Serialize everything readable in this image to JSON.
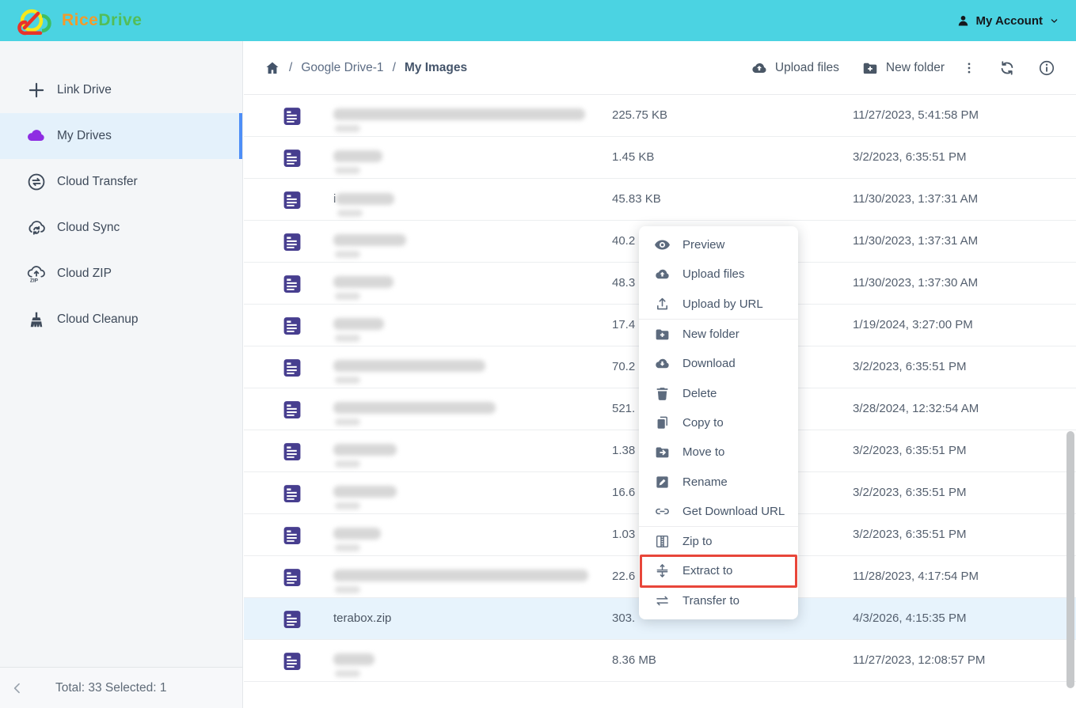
{
  "topbar": {
    "brand_primary": "Rice",
    "brand_secondary": "Drive",
    "account_label": "My Account"
  },
  "sidebar": {
    "items": [
      {
        "label": "Link Drive",
        "icon": "plus-icon",
        "active": false
      },
      {
        "label": "My Drives",
        "icon": "cloud-icon",
        "active": true
      },
      {
        "label": "Cloud Transfer",
        "icon": "transfer-circle-icon",
        "active": false
      },
      {
        "label": "Cloud Sync",
        "icon": "cloud-sync-icon",
        "active": false
      },
      {
        "label": "Cloud ZIP",
        "icon": "cloud-zip-icon",
        "active": false
      },
      {
        "label": "Cloud Cleanup",
        "icon": "broom-icon",
        "active": false
      }
    ],
    "footer_total": "Total: 33 Selected: 1"
  },
  "header": {
    "breadcrumb": {
      "items": [
        "Google Drive-1",
        "My Images"
      ],
      "separator": "/"
    },
    "upload_label": "Upload files",
    "new_folder_label": "New folder"
  },
  "file_list": {
    "rows": [
      {
        "name": "",
        "redacted": true,
        "blur_width": 318,
        "size": "225.75 KB",
        "modified": "11/27/2023, 5:41:58 PM",
        "selected": false
      },
      {
        "name": "",
        "redacted": true,
        "blur_width": 62,
        "size": "1.45 KB",
        "modified": "3/2/2023, 6:35:51 PM",
        "selected": false
      },
      {
        "name": "",
        "redacted": true,
        "blur_width": 74,
        "visible_prefix": "i",
        "size": "45.83 KB",
        "modified": "11/30/2023, 1:37:31 AM",
        "selected": false
      },
      {
        "name": "",
        "redacted": true,
        "blur_width": 92,
        "size": "40.2",
        "modified": "11/30/2023, 1:37:31 AM",
        "selected": false
      },
      {
        "name": "",
        "redacted": true,
        "blur_width": 76,
        "size": "48.3",
        "modified": "11/30/2023, 1:37:30 AM",
        "selected": false
      },
      {
        "name": "",
        "redacted": true,
        "blur_width": 64,
        "size": "17.4",
        "modified": "1/19/2024, 3:27:00 PM",
        "selected": false
      },
      {
        "name": "",
        "redacted": true,
        "blur_width": 192,
        "size": "70.2",
        "modified": "3/2/2023, 6:35:51 PM",
        "selected": false
      },
      {
        "name": "",
        "redacted": true,
        "blur_width": 205,
        "size": "521.",
        "modified": "3/28/2024, 12:32:54 AM",
        "selected": false
      },
      {
        "name": "",
        "redacted": true,
        "blur_width": 80,
        "size": "1.38",
        "modified": "3/2/2023, 6:35:51 PM",
        "selected": false
      },
      {
        "name": "",
        "redacted": true,
        "blur_width": 80,
        "size": "16.6",
        "modified": "3/2/2023, 6:35:51 PM",
        "selected": false
      },
      {
        "name": "",
        "redacted": true,
        "blur_width": 60,
        "size": "1.03",
        "modified": "3/2/2023, 6:35:51 PM",
        "selected": false
      },
      {
        "name": "",
        "redacted": true,
        "blur_width": 322,
        "size": "22.6",
        "modified": "11/28/2023, 4:17:54 PM",
        "selected": false
      },
      {
        "name": "terabox.zip",
        "redacted": false,
        "blur_width": 0,
        "size": "303.",
        "modified": "4/3/2026, 4:15:35 PM",
        "selected": true
      },
      {
        "name": "",
        "redacted": true,
        "blur_width": 52,
        "size": "8.36 MB",
        "modified": "11/27/2023, 12:08:57 PM",
        "selected": false
      }
    ]
  },
  "context_menu": {
    "items": [
      {
        "label": "Preview",
        "icon": "eye",
        "highlighted": false
      },
      {
        "label": "Upload files",
        "icon": "cloud-up",
        "highlighted": false
      },
      {
        "label": "Upload by URL",
        "icon": "upload",
        "highlighted": false
      },
      {
        "divider": true
      },
      {
        "label": "New folder",
        "icon": "folder-plus",
        "highlighted": false
      },
      {
        "label": "Download",
        "icon": "cloud-down",
        "highlighted": false
      },
      {
        "label": "Delete",
        "icon": "trash",
        "highlighted": false
      },
      {
        "label": "Copy to",
        "icon": "copy",
        "highlighted": false
      },
      {
        "label": "Move to",
        "icon": "move",
        "highlighted": false
      },
      {
        "label": "Rename",
        "icon": "rename",
        "highlighted": false
      },
      {
        "label": "Get Download URL",
        "icon": "link",
        "highlighted": false
      },
      {
        "divider": true
      },
      {
        "label": "Zip to",
        "icon": "zip",
        "highlighted": false
      },
      {
        "label": "Extract to",
        "icon": "extract",
        "highlighted": true
      },
      {
        "label": "Transfer to",
        "icon": "transfer",
        "highlighted": false
      }
    ]
  },
  "colors": {
    "topbar": "#4bd3e2",
    "accent_blue": "#4e8ef7",
    "selected_row": "#e7f3fc",
    "file_icon": "#473e8f",
    "active_icon_purple": "#8e2de2",
    "highlight_red": "#e8463a",
    "brand_orange": "#f39a2a",
    "brand_green": "#53bd58"
  }
}
